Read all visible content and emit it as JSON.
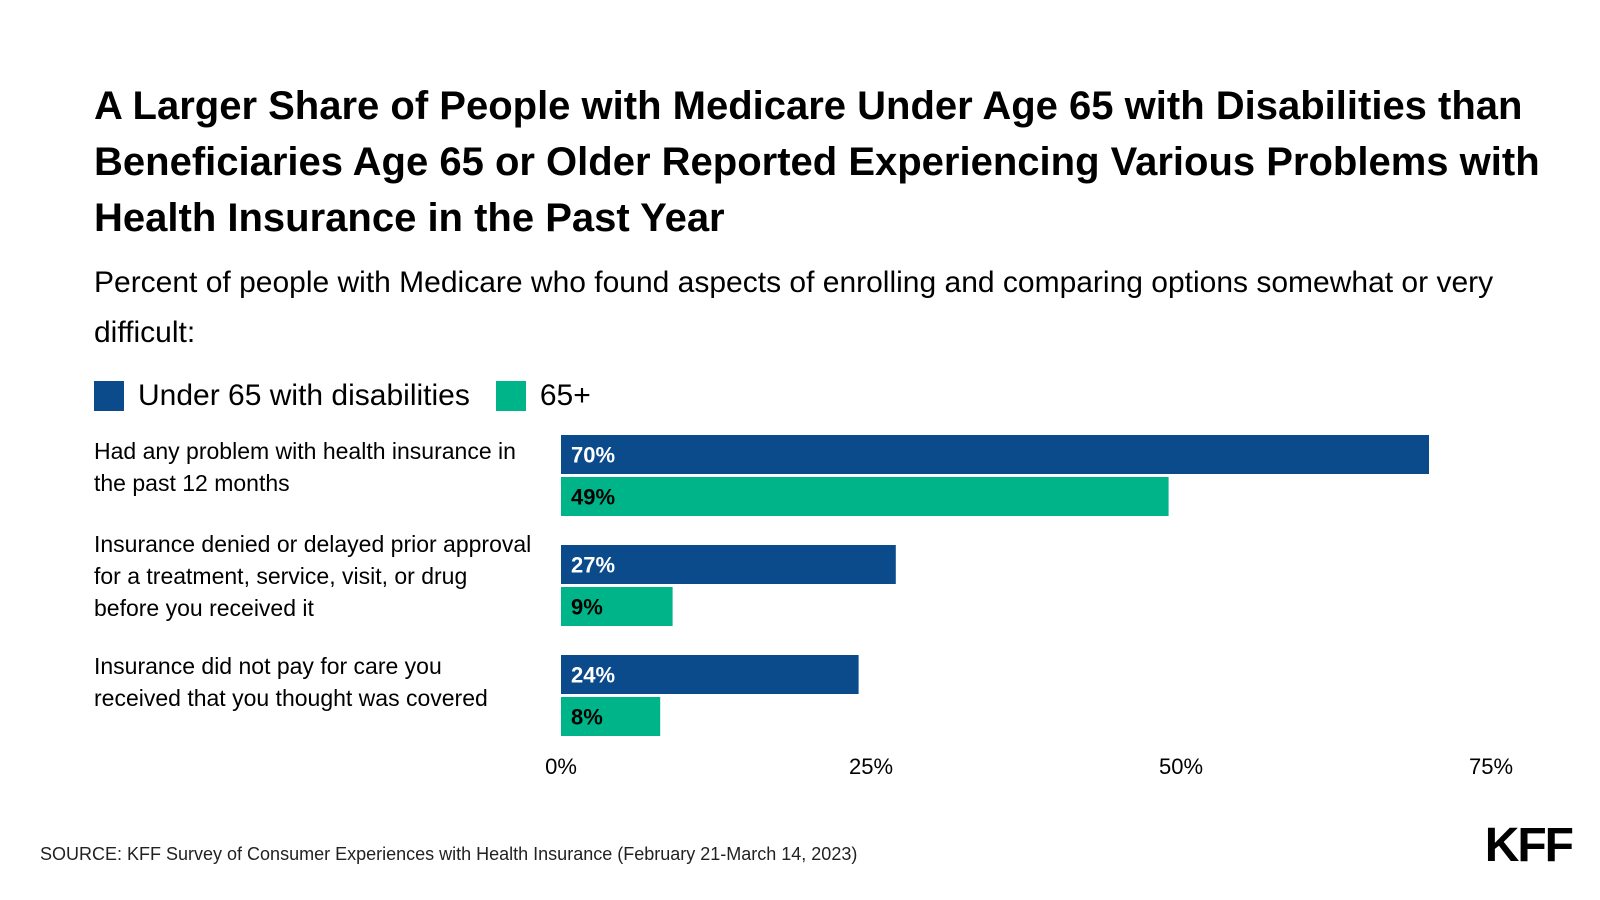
{
  "title": "A Larger Share of People with Medicare Under Age 65 with Disabilities than Beneficiaries Age 65 or Older Reported Experiencing Various Problems with Health Insurance in the Past Year",
  "subtitle": "Percent of people with Medicare who found aspects of enrolling and comparing options somewhat or very difficult:",
  "source": "SOURCE: KFF Survey of Consumer Experiences with Health Insurance (February 21-March 14, 2023)",
  "logo": "KFF",
  "colors": {
    "under65": "#0b4a8b",
    "over65": "#00b48a"
  },
  "chart_data": {
    "type": "bar",
    "orientation": "horizontal",
    "categories": [
      "Had any problem with health insurance in the past 12 months",
      "Insurance denied or delayed prior approval for a treatment, service, visit, or drug before you received it",
      "Insurance did not pay for care you received that you thought was covered"
    ],
    "series": [
      {
        "name": "Under 65 with disabilities",
        "values": [
          70,
          27,
          24
        ],
        "labels": [
          "70%",
          "27%",
          "24%"
        ],
        "color": "#0b4a8b"
      },
      {
        "name": "65+",
        "values": [
          49,
          9,
          8
        ],
        "labels": [
          "49%",
          "9%",
          "8%"
        ],
        "color": "#00b48a"
      }
    ],
    "xlim": [
      0,
      75
    ],
    "xticks": [
      0,
      25,
      50,
      75
    ],
    "xtick_labels": [
      "0%",
      "25%",
      "50%",
      "75%"
    ],
    "grid": false,
    "legend_position": "top-left"
  }
}
